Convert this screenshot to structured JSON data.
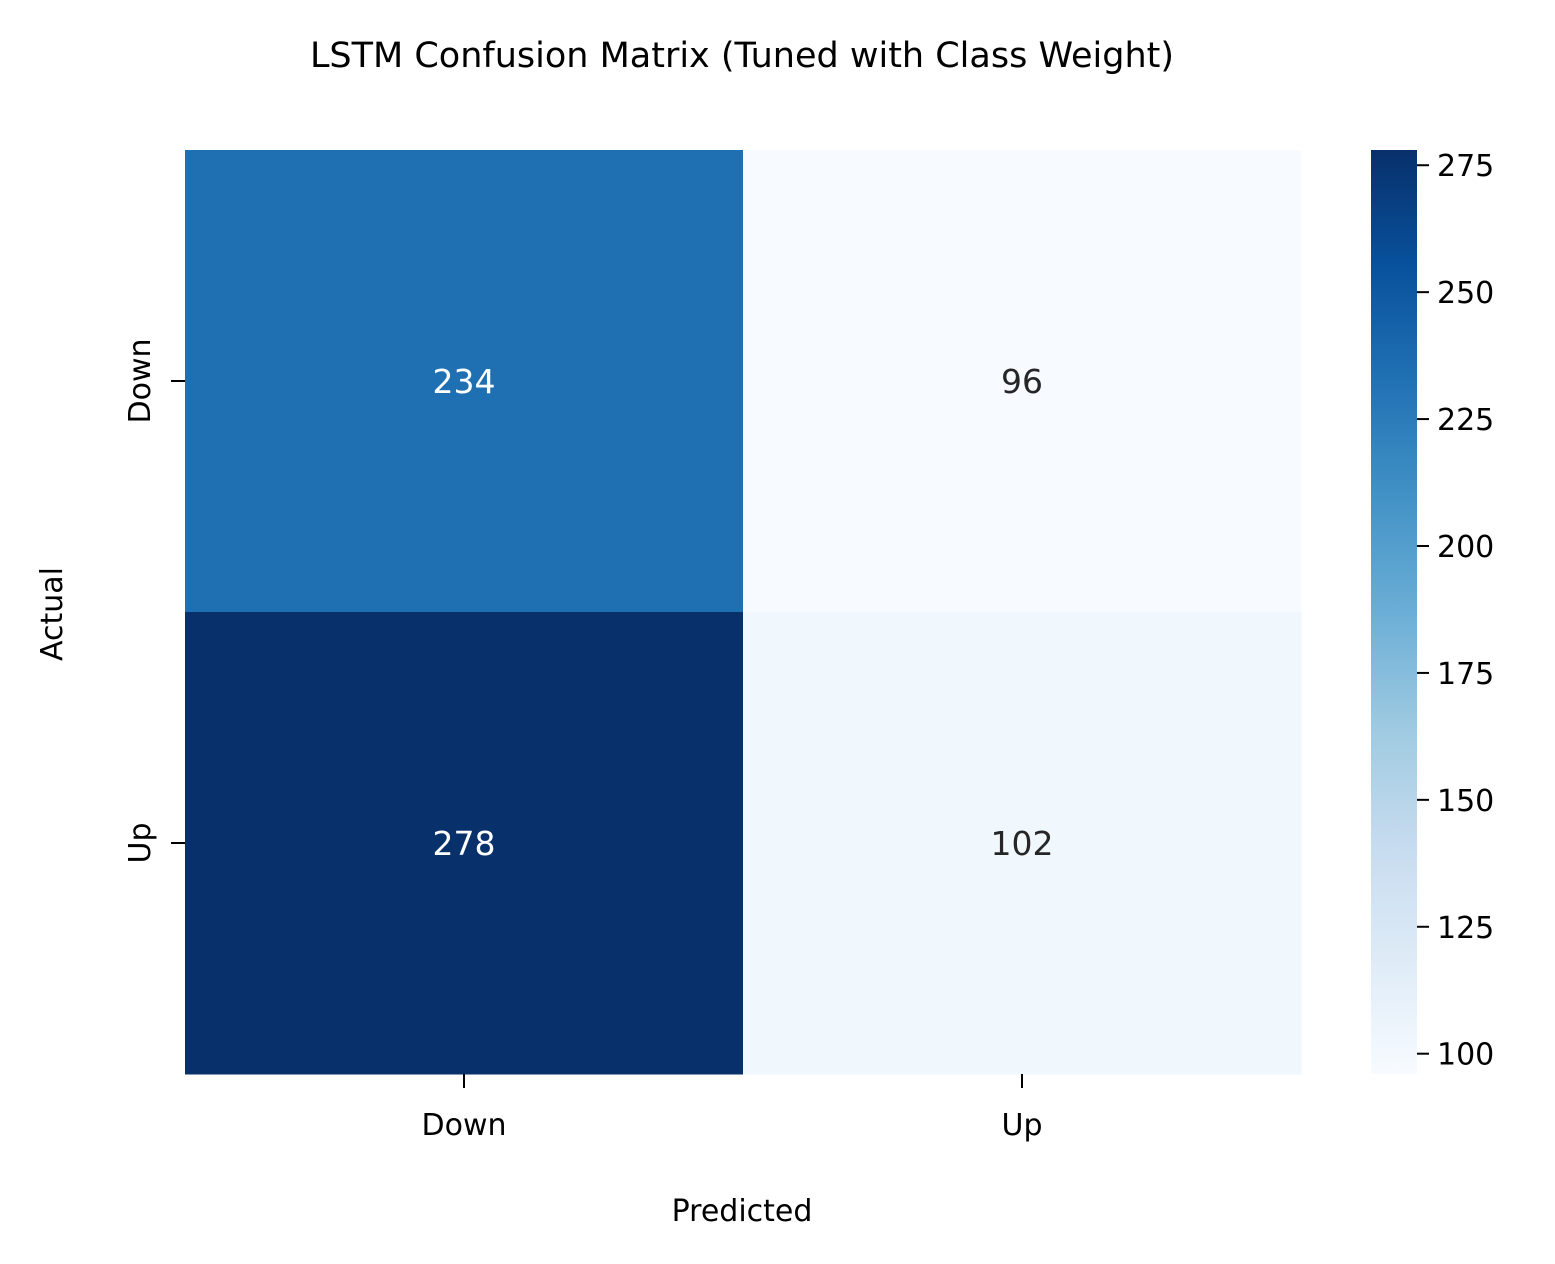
{
  "chart_data": {
    "type": "heatmap",
    "title": "LSTM Confusion Matrix (Tuned with Class Weight)",
    "xlabel": "Predicted",
    "ylabel": "Actual",
    "x_categories": [
      "Down",
      "Up"
    ],
    "y_categories": [
      "Down",
      "Up"
    ],
    "values": [
      [
        234,
        96
      ],
      [
        278,
        102
      ]
    ],
    "colormap": "Blues",
    "colorbar": {
      "min": 96,
      "max": 278,
      "ticks": [
        100,
        125,
        150,
        175,
        200,
        225,
        250,
        275
      ]
    },
    "annotation_colors": {
      "dark_cell_text": "#ffffff",
      "light_cell_text": "#262626"
    }
  }
}
